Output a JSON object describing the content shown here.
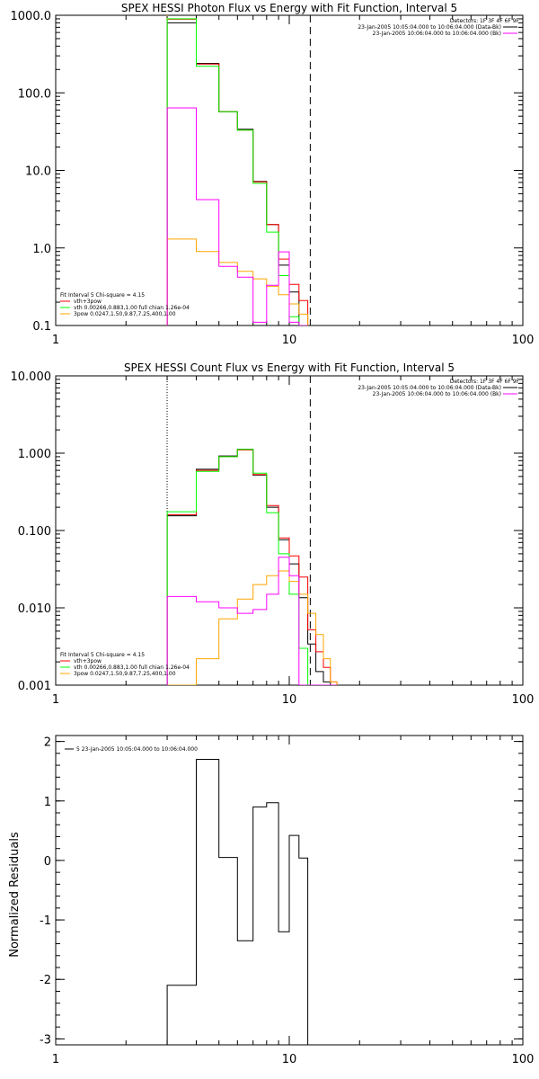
{
  "chart_data": [
    {
      "type": "line",
      "title": "SPEX HESSI Photon Flux vs Energy with Fit Function, Interval 5",
      "xscale": "log",
      "yscale": "log",
      "xlim": [
        1,
        100
      ],
      "ylim": [
        0.1,
        1000
      ],
      "x_ticks": [
        "1",
        "10",
        "100"
      ],
      "y_ticks": [
        "0.1",
        "1.0",
        "10.0",
        "100.0",
        "1000.0"
      ],
      "ytick_values": [
        0.1,
        1,
        10,
        100,
        1000
      ],
      "vlines": [
        {
          "x": 3,
          "style": "dotted",
          "color": "#ffa500"
        },
        {
          "x": 12.3,
          "style": "dashed",
          "color": "#000000"
        }
      ],
      "legend_top_right": {
        "header": "Detectors: 1F 3F 4F 6F 9F",
        "entries": [
          {
            "text": "23-Jan-2005 10:05:04.000 to 10:06:04.000 (Data-Bk)",
            "color": "#000000"
          },
          {
            "text": "23-Jan-2005 10:06:04.000 to 10:06:04.000 (Bk)",
            "color": "#ff00ff"
          }
        ]
      },
      "legend_bottom_left": {
        "header": "Fit Interval 5   Chi-square = 4.15",
        "entries": [
          {
            "text": "vth+3pow",
            "color": "#ff0000"
          },
          {
            "text": "vth 0.00266,0.883,1.00  full chian 1.26e-04",
            "color": "#00ff00"
          },
          {
            "text": "3pow 0.0247,1.50,9.87,7.25,400,1.00",
            "color": "#ffa500"
          }
        ]
      },
      "bin_edges": [
        3,
        4,
        5,
        6,
        7,
        8,
        9,
        10,
        11,
        12
      ],
      "series": [
        {
          "name": "Data-Bk",
          "color": "#000000",
          "values": [
            800,
            240,
            57,
            34,
            7.2,
            2.0,
            0.6,
            0.27,
            0.1
          ]
        },
        {
          "name": "vth+3pow",
          "color": "#ff0000",
          "values": [
            890,
            235,
            57,
            33,
            7.1,
            2.0,
            0.72,
            0.34,
            0.21
          ]
        },
        {
          "name": "vth",
          "color": "#00ff00",
          "values": [
            900,
            220,
            57,
            33,
            6.8,
            1.6,
            0.44,
            0.13,
            0.1
          ]
        },
        {
          "name": "3pow",
          "color": "#ffa500",
          "values": [
            1.3,
            0.9,
            0.65,
            0.5,
            0.4,
            0.32,
            0.25,
            0.19,
            0.14
          ]
        },
        {
          "name": "Bk",
          "color": "#ff00ff",
          "values": [
            64,
            4.2,
            0.58,
            0.42,
            0.11,
            0.33,
            0.89,
            0.11,
            0.1
          ]
        }
      ]
    },
    {
      "type": "line",
      "title": "SPEX HESSI Count Flux vs Energy with Fit Function, Interval 5",
      "xscale": "log",
      "yscale": "log",
      "xlim": [
        1,
        100
      ],
      "ylim": [
        0.001,
        10
      ],
      "x_ticks": [
        "1",
        "10",
        "100"
      ],
      "y_ticks": [
        "0.001",
        "0.010",
        "0.100",
        "1.000",
        "10.000"
      ],
      "ytick_values": [
        0.001,
        0.01,
        0.1,
        1,
        10
      ],
      "vlines": [
        {
          "x": 3,
          "style": "dotted",
          "color": "#000000"
        },
        {
          "x": 12.3,
          "style": "dashed",
          "color": "#000000"
        }
      ],
      "legend_top_right": {
        "header": "Detectors: 1F 3F 4F 6F 9F",
        "entries": [
          {
            "text": "23-Jan-2005 10:05:04.000 to 10:06:04.000 (Data-Bk)",
            "color": "#000000"
          },
          {
            "text": "23-Jan-2005 10:06:04.000 to 10:06:04.000 (Bk)",
            "color": "#ff00ff"
          }
        ]
      },
      "legend_bottom_left": {
        "header": "Fit Interval 5   Chi-square = 4.15",
        "entries": [
          {
            "text": "vth+3pow",
            "color": "#ff0000"
          },
          {
            "text": "vth 0.00266,0.883,1.00  full chian 1.26e-04",
            "color": "#00ff00"
          },
          {
            "text": "3pow 0.0247,1.50,9.87,7.25,400,1.00",
            "color": "#ffa500"
          }
        ]
      },
      "bin_edges": [
        3,
        4,
        5,
        6,
        7,
        8,
        9,
        10,
        11,
        12,
        13,
        14,
        15,
        16
      ],
      "series": [
        {
          "name": "Data-Bk",
          "color": "#000000",
          "values": [
            0.155,
            0.62,
            0.92,
            1.12,
            0.52,
            0.2,
            0.076,
            0.037,
            0.0135,
            0.0034,
            0.0015,
            0.0011,
            0.001
          ]
        },
        {
          "name": "vth+3pow",
          "color": "#ff0000",
          "values": [
            0.16,
            0.6,
            0.9,
            1.1,
            0.53,
            0.21,
            0.08,
            0.047,
            0.025,
            0.0052,
            0.0027,
            0.0017,
            0.0011
          ]
        },
        {
          "name": "vth",
          "color": "#00ff00",
          "values": [
            0.175,
            0.58,
            0.9,
            1.12,
            0.55,
            0.17,
            0.05,
            0.015,
            0.003,
            0.001,
            0.001,
            0.001,
            0.001
          ]
        },
        {
          "name": "3pow",
          "color": "#ffa500",
          "values": [
            0.001,
            0.0022,
            0.0072,
            0.013,
            0.02,
            0.026,
            0.03,
            0.022,
            0.015,
            0.0085,
            0.0045,
            0.0022,
            0.0011
          ]
        },
        {
          "name": "Bk",
          "color": "#ff00ff",
          "values": [
            0.014,
            0.012,
            0.01,
            0.0085,
            0.0095,
            0.015,
            0.045,
            0.026,
            0.001,
            0.001,
            0.001,
            0.001,
            0.001
          ]
        }
      ]
    },
    {
      "type": "line",
      "title": "",
      "ylabel": "Normalized Residuals",
      "xscale": "log",
      "yscale": "linear",
      "xlim": [
        1,
        100
      ],
      "ylim": [
        -3.1,
        2.1
      ],
      "x_ticks": [
        "1",
        "10",
        "100"
      ],
      "y_ticks": [
        "-3",
        "-2",
        "-1",
        "0",
        "1",
        "2"
      ],
      "ytick_values": [
        -3,
        -2,
        -1,
        0,
        1,
        2
      ],
      "legend_top_left": {
        "entries": [
          {
            "text": "5  23-Jan-2005 10:05:04.000 to 10:06:04.000",
            "color": "#000000"
          }
        ]
      },
      "bin_edges": [
        3,
        4,
        5,
        6,
        7,
        8,
        9,
        10,
        11,
        12
      ],
      "series": [
        {
          "name": "residuals",
          "color": "#000000",
          "values": [
            -2.1,
            1.7,
            0.05,
            -1.35,
            0.9,
            0.97,
            -1.2,
            0.42,
            0.04
          ]
        }
      ]
    }
  ]
}
